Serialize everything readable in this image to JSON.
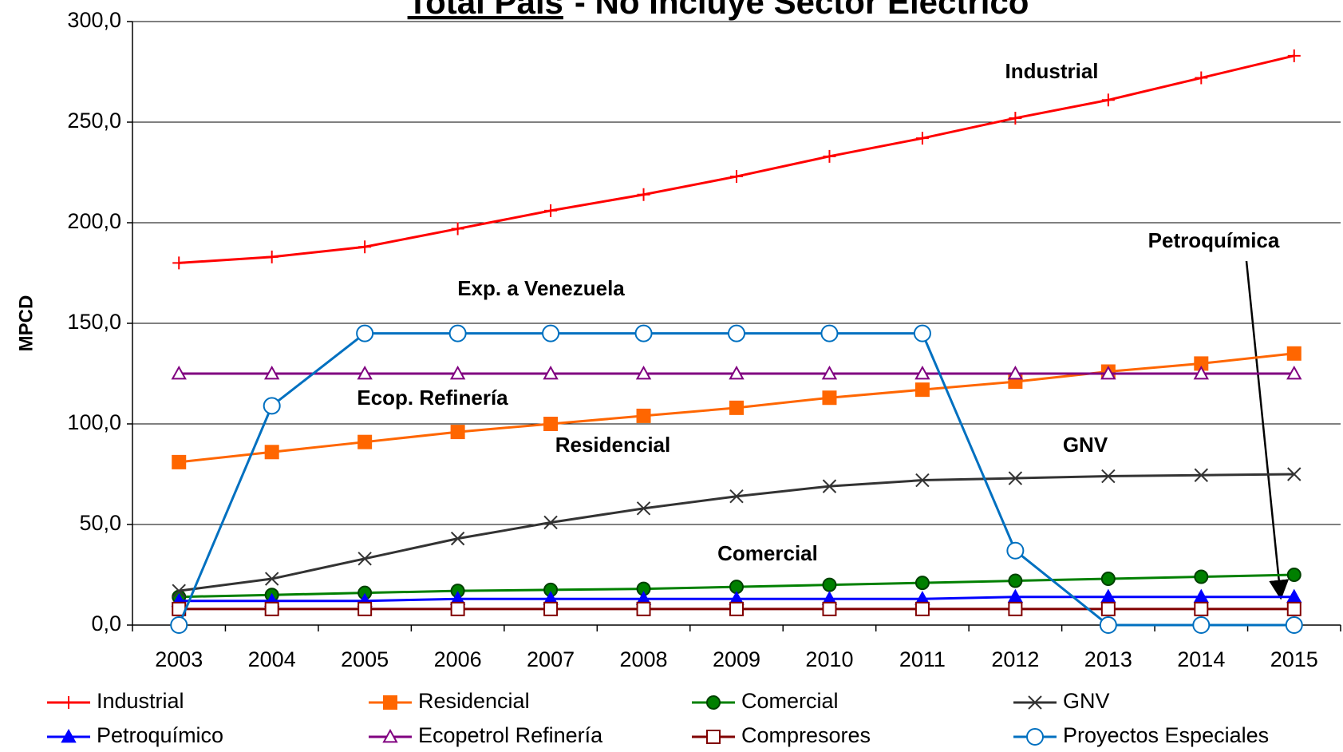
{
  "chart_data": {
    "type": "line",
    "title": "Total País",
    "subtitle": "- No Incluye Sector Eléctrico",
    "y_label": "MPCD",
    "categories": [
      "2003",
      "2004",
      "2005",
      "2006",
      "2007",
      "2008",
      "2009",
      "2010",
      "2011",
      "2012",
      "2013",
      "2014",
      "2015"
    ],
    "ylim": [
      0,
      300
    ],
    "yticks": [
      {
        "value": 0,
        "label": "0,0"
      },
      {
        "value": 50,
        "label": "50,0"
      },
      {
        "value": 100,
        "label": "100,0"
      },
      {
        "value": 150,
        "label": "150,0"
      },
      {
        "value": 200,
        "label": "200,0"
      },
      {
        "value": 250,
        "label": "250,0"
      },
      {
        "value": 300,
        "label": "300,0"
      }
    ],
    "grid": true,
    "legend": "bottom",
    "series": [
      {
        "name": "Industrial",
        "color": "#ff0000",
        "marker": "plus",
        "values": [
          180,
          183,
          188,
          197,
          206,
          214,
          223,
          233,
          242,
          252,
          261,
          272,
          283
        ]
      },
      {
        "name": "Residencial",
        "color": "#ff6600",
        "marker": "square",
        "values": [
          81,
          86,
          91,
          96,
          100,
          104,
          108,
          113,
          117,
          121,
          126,
          130,
          135
        ]
      },
      {
        "name": "Comercial",
        "color": "#008000",
        "marker": "circle",
        "values": [
          14,
          15,
          16,
          17,
          17.5,
          18,
          19,
          20,
          21,
          22,
          23,
          24,
          25
        ]
      },
      {
        "name": "GNV",
        "color": "#333333",
        "marker": "x",
        "values": [
          17,
          23,
          33,
          43,
          51,
          58,
          64,
          69,
          72,
          73,
          74,
          74.5,
          75
        ]
      },
      {
        "name": "Petroquímico",
        "color": "#0000ff",
        "marker": "triangle",
        "values": [
          12,
          12,
          12,
          13,
          13,
          13,
          13,
          13,
          13,
          14,
          14,
          14,
          14
        ]
      },
      {
        "name": "Ecopetrol Refinería",
        "color": "#800080",
        "marker": "triangle-open",
        "values": [
          125,
          125,
          125,
          125,
          125,
          125,
          125,
          125,
          125,
          125,
          125,
          125,
          125
        ]
      },
      {
        "name": "Compresores",
        "color": "#800000",
        "marker": "square-open",
        "values": [
          8,
          8,
          8,
          8,
          8,
          8,
          8,
          8,
          8,
          8,
          8,
          8,
          8
        ]
      },
      {
        "name": "Proyectos Especiales",
        "color": "#0070c0",
        "marker": "circle-open",
        "values": [
          0,
          109,
          145,
          145,
          145,
          145,
          145,
          145,
          145,
          37,
          0,
          0,
          0
        ]
      }
    ],
    "annotations": [
      "Industrial",
      "Exp. a Venezuela",
      "Ecop. Refinería",
      "Residencial",
      "GNV",
      "Comercial",
      "Petroquímica"
    ]
  }
}
